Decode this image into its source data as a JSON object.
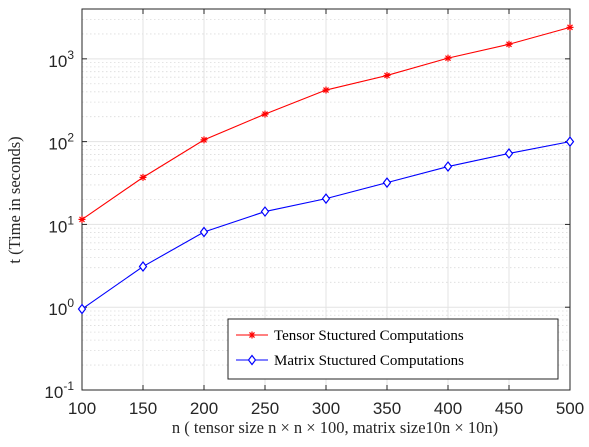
{
  "chart_data": {
    "type": "line",
    "title": "",
    "xlabel": "n ( tensor size n × n × 100,  matrix size10n × 10n)",
    "ylabel": "t (Time in seconds)",
    "x": [
      100,
      150,
      200,
      250,
      300,
      350,
      400,
      450,
      500
    ],
    "xlim": [
      100,
      500
    ],
    "ylim": [
      0.1,
      4000
    ],
    "yscale": "log",
    "grid": true,
    "minor_grid": true,
    "legend_position": "bottom-right",
    "xticks": [
      100,
      150,
      200,
      250,
      300,
      350,
      400,
      450,
      500
    ],
    "xtick_labels": [
      "100",
      "150",
      "200",
      "250",
      "300",
      "350",
      "400",
      "450",
      "500"
    ],
    "yticks": [
      {
        "value": 0.1,
        "base": "10",
        "exp": "-1"
      },
      {
        "value": 1,
        "base": "10",
        "exp": "0"
      },
      {
        "value": 10,
        "base": "10",
        "exp": "1"
      },
      {
        "value": 100,
        "base": "10",
        "exp": "2"
      },
      {
        "value": 1000,
        "base": "10",
        "exp": "3"
      }
    ],
    "series": [
      {
        "name": "Tensor Stuctured Computations",
        "color": "#ff0000",
        "marker": "asterisk",
        "values": [
          11.5,
          37,
          105,
          215,
          420,
          630,
          1020,
          1500,
          2400
        ]
      },
      {
        "name": "Matrix Stuctured Computations",
        "color": "#0000ff",
        "marker": "diamond",
        "values": [
          0.95,
          3.1,
          8.1,
          14.3,
          20.5,
          32,
          50,
          72,
          100
        ]
      }
    ]
  }
}
